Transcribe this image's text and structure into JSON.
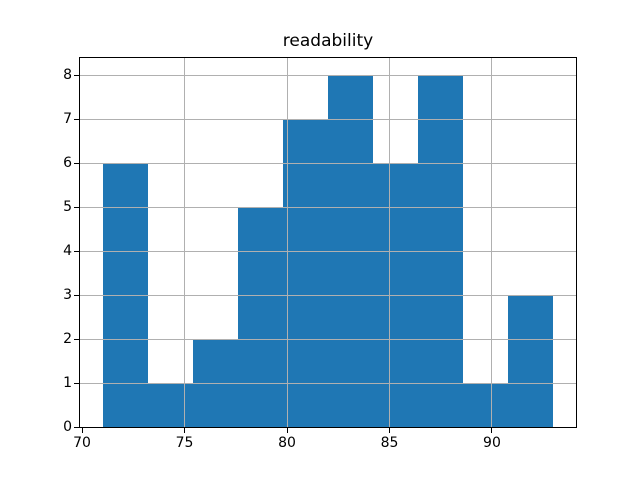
{
  "chart_data": {
    "type": "bar",
    "subtype": "histogram",
    "title": "readability",
    "xlabel": "",
    "ylabel": "",
    "bin_edges": [
      71.0,
      73.2,
      75.4,
      77.6,
      79.8,
      82.0,
      84.2,
      86.4,
      88.6,
      90.8,
      93.0
    ],
    "counts": [
      6,
      1,
      2,
      5,
      7,
      8,
      6,
      8,
      1,
      3
    ],
    "xticks": [
      70,
      75,
      80,
      85,
      90
    ],
    "yticks": [
      0,
      1,
      2,
      3,
      4,
      5,
      6,
      7,
      8
    ],
    "xlim": [
      69.9,
      94.1
    ],
    "ylim": [
      0,
      8.4
    ],
    "bar_color": "#1f77b4",
    "grid": true,
    "grid_color": "#b0b0b0",
    "axis_color": "#000000",
    "legend_position": "none"
  }
}
